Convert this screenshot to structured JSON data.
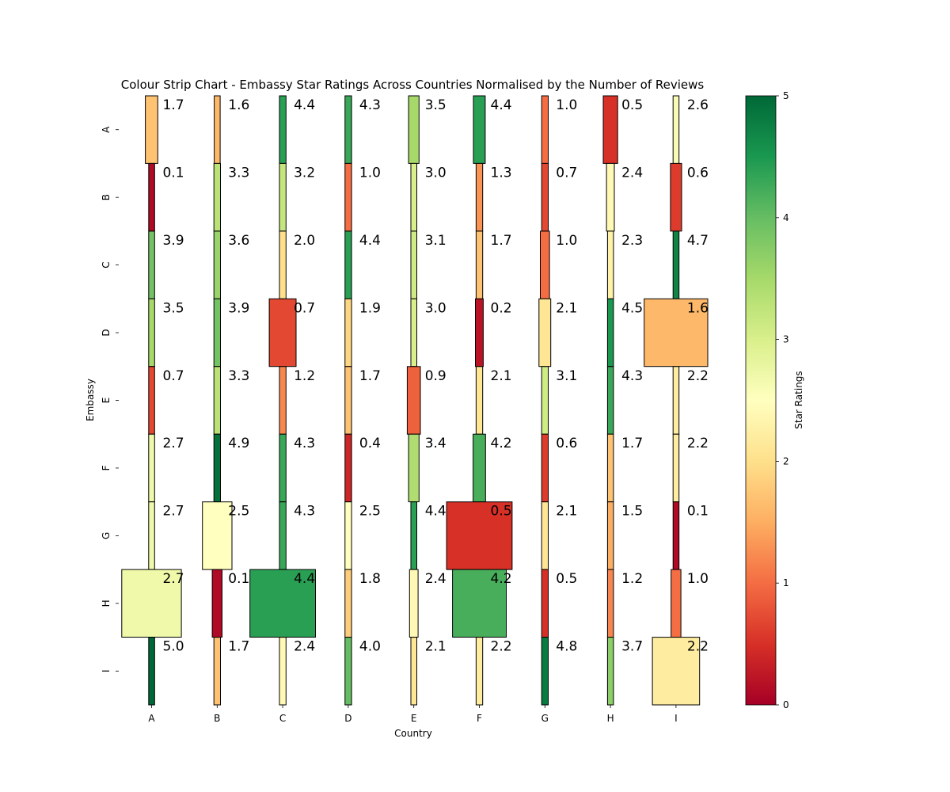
{
  "chart_data": {
    "type": "heatmap",
    "title": "Colour Strip Chart - Embassy Star Ratings Across Countries Normalised by the Number of Reviews",
    "xlabel": "Country",
    "ylabel": "Embassy",
    "countries": [
      "A",
      "B",
      "C",
      "D",
      "E",
      "F",
      "G",
      "H",
      "I"
    ],
    "embassies": [
      "A",
      "B",
      "C",
      "D",
      "E",
      "F",
      "G",
      "H",
      "I"
    ],
    "ratings": [
      [
        1.7,
        1.6,
        4.4,
        4.3,
        3.5,
        4.4,
        1.0,
        0.5,
        2.6
      ],
      [
        0.1,
        3.3,
        3.2,
        1.0,
        3.0,
        1.3,
        0.7,
        2.4,
        0.6
      ],
      [
        3.9,
        3.6,
        2.0,
        4.4,
        3.1,
        1.7,
        1.0,
        2.3,
        4.7
      ],
      [
        3.5,
        3.9,
        0.7,
        1.9,
        3.0,
        0.2,
        2.1,
        4.5,
        1.6
      ],
      [
        0.7,
        3.3,
        1.2,
        1.7,
        0.9,
        2.1,
        3.1,
        4.3,
        2.2
      ],
      [
        2.7,
        4.9,
        4.3,
        0.4,
        3.4,
        4.2,
        0.6,
        1.7,
        2.2
      ],
      [
        2.7,
        2.5,
        4.3,
        2.5,
        4.4,
        0.5,
        2.1,
        1.5,
        0.1
      ],
      [
        2.7,
        0.1,
        4.4,
        1.8,
        2.4,
        4.2,
        0.5,
        1.2,
        1.0
      ],
      [
        5.0,
        1.7,
        2.4,
        4.0,
        2.1,
        2.2,
        4.8,
        3.7,
        2.2
      ]
    ],
    "review_share": [
      [
        0.19,
        0.09,
        0.1,
        0.1,
        0.16,
        0.18,
        0.1,
        0.22,
        0.09
      ],
      [
        0.09,
        0.1,
        0.1,
        0.1,
        0.09,
        0.1,
        0.1,
        0.12,
        0.17
      ],
      [
        0.09,
        0.1,
        0.1,
        0.1,
        0.09,
        0.1,
        0.14,
        0.09,
        0.09
      ],
      [
        0.09,
        0.1,
        0.41,
        0.1,
        0.09,
        0.12,
        0.18,
        0.09,
        0.97
      ],
      [
        0.09,
        0.1,
        0.1,
        0.1,
        0.2,
        0.1,
        0.1,
        0.09,
        0.09
      ],
      [
        0.09,
        0.1,
        0.1,
        0.1,
        0.16,
        0.19,
        0.1,
        0.09,
        0.09
      ],
      [
        0.09,
        0.45,
        0.1,
        0.1,
        0.09,
        1.0,
        0.1,
        0.09,
        0.09
      ],
      [
        0.91,
        0.15,
        1.0,
        0.1,
        0.13,
        0.82,
        0.1,
        0.09,
        0.15
      ],
      [
        0.09,
        0.1,
        0.1,
        0.1,
        0.09,
        0.1,
        0.1,
        0.09,
        0.72
      ]
    ],
    "colorbar": {
      "label": "Star Ratings",
      "range": [
        0,
        5
      ],
      "ticks": [
        "0",
        "1",
        "2",
        "3",
        "4",
        "5"
      ],
      "colormap": [
        "#a50026",
        "#d73027",
        "#f46d43",
        "#fdae61",
        "#fee08b",
        "#ffffbf",
        "#d9ef8b",
        "#a6d96a",
        "#66bd63",
        "#1a9850",
        "#006837"
      ]
    }
  }
}
